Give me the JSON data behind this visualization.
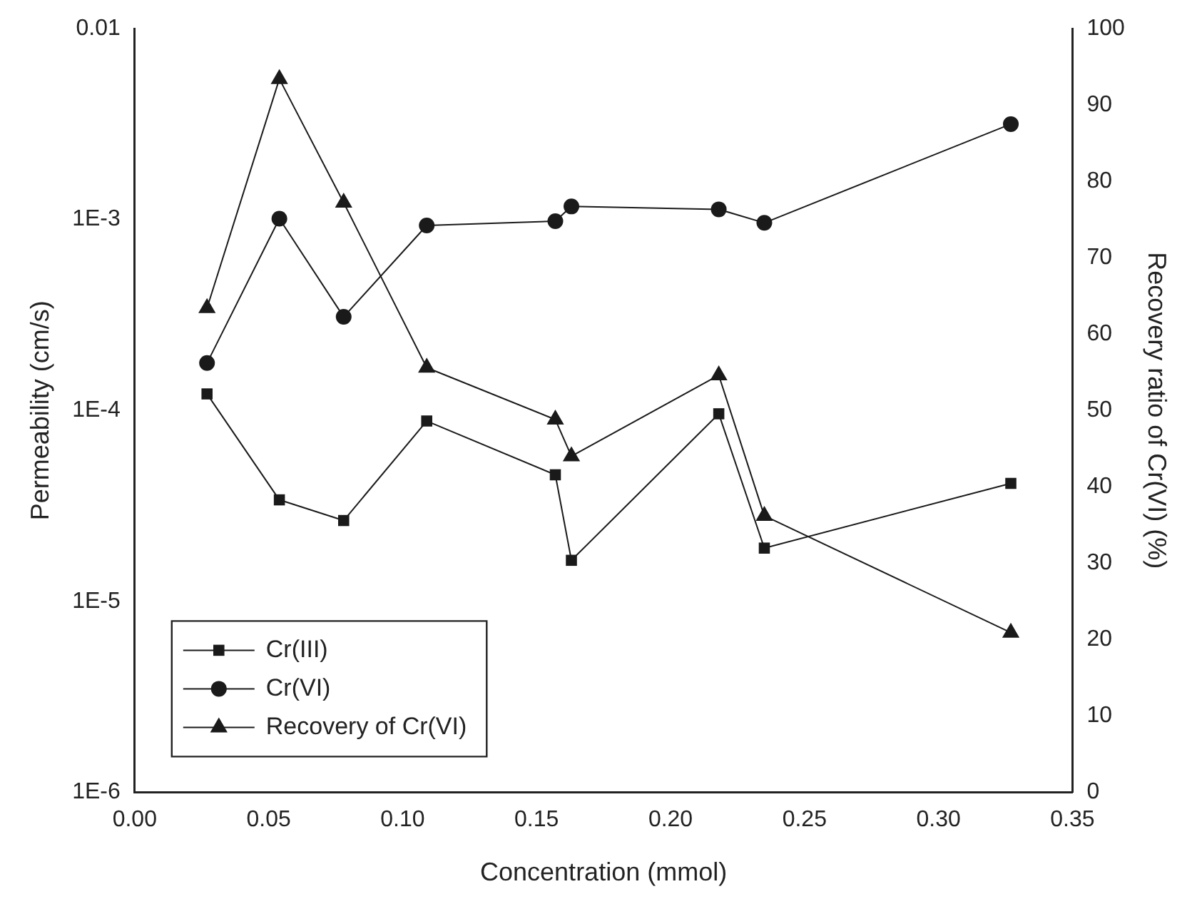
{
  "chart_data": {
    "type": "line",
    "xlabel": "Concentration (mmol)",
    "ylabel": "Permeability (cm/s)",
    "y2label": "Recovery ratio of Cr(VI) (%)",
    "log": "y",
    "legend": "bottom left",
    "grid": false,
    "line_style": "solid",
    "xlim": [
      0,
      0.35
    ],
    "xticks": [
      {
        "value": 0,
        "label": "0.00"
      },
      0.05,
      {
        "value": 0.1,
        "label": "0.10"
      },
      0.15,
      {
        "value": 0.2,
        "label": "0.20"
      },
      0.25,
      {
        "value": 0.3,
        "label": "0.30"
      },
      0.35
    ],
    "ylim": [
      1e-06,
      0.01
    ],
    "yticks": [
      {
        "value": 1e-06,
        "label": "1E-6"
      },
      {
        "value": 1e-05,
        "label": "1E-5"
      },
      {
        "value": 0.0001,
        "label": "1E-4"
      },
      {
        "value": 0.001,
        "label": "1E-3"
      },
      0.01
    ],
    "y2lim": [
      0,
      100
    ],
    "y2ticks": [
      0,
      10,
      20,
      30,
      40,
      50,
      60,
      70,
      80,
      90,
      100
    ],
    "x": [
      0.027,
      0.054,
      0.078,
      0.109,
      0.157,
      0.163,
      0.218,
      0.235,
      0.327
    ],
    "series": [
      {
        "name": "Cr(III)",
        "color": "#1a1a1a",
        "marker": "square",
        "values": [
          0.000122,
          3.4e-05,
          2.65e-05,
          8.8e-05,
          4.6e-05,
          1.64e-05,
          9.6e-05,
          1.9e-05,
          4.15e-05
        ]
      },
      {
        "name": "Cr(VI)",
        "color": "#1a1a1a",
        "marker": "circle",
        "values": [
          0.000177,
          0.00101,
          0.000309,
          0.00093,
          0.00098,
          0.00117,
          0.00113,
          0.00096,
          0.00316
        ]
      },
      {
        "name": "Recovery of Cr(VI)",
        "color": "#1a1a1a",
        "marker": "triangle",
        "axis": "y2",
        "values": [
          63.4,
          93.4,
          77.2,
          55.6,
          48.8,
          44.0,
          54.6,
          36.2,
          20.9
        ]
      }
    ]
  }
}
